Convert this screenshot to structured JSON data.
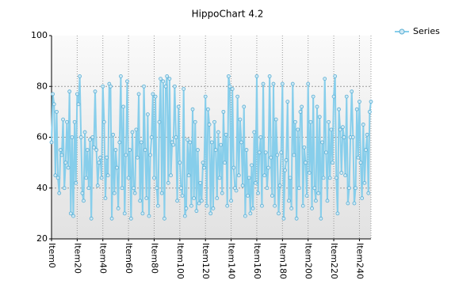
{
  "chart_data": {
    "type": "line",
    "title": "HippoChart 4.2",
    "categories": [
      "Item0",
      null,
      null,
      null,
      null,
      null,
      null,
      null,
      null,
      null,
      null,
      null,
      null,
      null,
      null,
      null,
      null,
      null,
      null,
      null,
      "Item20",
      null,
      null,
      null,
      null,
      null,
      null,
      null,
      null,
      null,
      null,
      null,
      null,
      null,
      null,
      null,
      null,
      null,
      null,
      null,
      "Item40",
      null,
      null,
      null,
      null,
      null,
      null,
      null,
      null,
      null,
      null,
      null,
      null,
      null,
      null,
      null,
      null,
      null,
      null,
      null,
      "Item60",
      null,
      null,
      null,
      null,
      null,
      null,
      null,
      null,
      null,
      null,
      null,
      null,
      null,
      null,
      null,
      null,
      null,
      null,
      null,
      "Item80",
      null,
      null,
      null,
      null,
      null,
      null,
      null,
      null,
      null,
      null,
      null,
      null,
      null,
      null,
      null,
      null,
      null,
      null,
      null,
      "Item100",
      null,
      null,
      null,
      null,
      null,
      null,
      null,
      null,
      null,
      null,
      null,
      null,
      null,
      null,
      null,
      null,
      null,
      null,
      null,
      "Item120",
      null,
      null,
      null,
      null,
      null,
      null,
      null,
      null,
      null,
      null,
      null,
      null,
      null,
      null,
      null,
      null,
      null,
      null,
      null,
      "Item140",
      null,
      null,
      null,
      null,
      null,
      null,
      null,
      null,
      null,
      null,
      null,
      null,
      null,
      null,
      null,
      null,
      null,
      null,
      null,
      "Item160",
      null,
      null,
      null,
      null,
      null,
      null,
      null,
      null,
      null,
      null,
      null,
      null,
      null,
      null,
      null,
      null,
      null,
      null,
      null,
      "Item180",
      null,
      null,
      null,
      null,
      null,
      null,
      null,
      null,
      null,
      null,
      null,
      null,
      null,
      null,
      null,
      null,
      null,
      null,
      null,
      "Item200",
      null,
      null,
      null,
      null,
      null,
      null,
      null,
      null,
      null,
      null,
      null,
      null,
      null,
      null,
      null,
      null,
      null,
      null,
      null,
      "Item220",
      null,
      null,
      null,
      null,
      null,
      null,
      null,
      null,
      null,
      null,
      null,
      null,
      null,
      null,
      null,
      null,
      null,
      null,
      null,
      "Item240",
      null,
      null,
      null,
      null,
      null,
      null,
      null,
      null,
      null
    ],
    "series": [
      {
        "name": "Series",
        "color": "#87ceeb",
        "values": [
          58,
          77,
          73,
          45,
          70,
          44,
          38,
          55,
          53,
          67,
          40,
          50,
          66,
          48,
          78,
          30,
          60,
          29,
          66,
          42,
          77,
          73,
          84,
          60,
          38,
          35,
          62,
          44,
          55,
          40,
          59,
          28,
          60,
          56,
          78,
          55,
          41,
          50,
          52,
          44,
          80,
          66,
          36,
          52,
          45,
          81,
          80,
          28,
          61,
          38,
          55,
          48,
          32,
          58,
          84,
          40,
          72,
          30,
          53,
          82,
          44,
          55,
          28,
          62,
          40,
          38,
          63,
          52,
          77,
          35,
          58,
          30,
          80,
          55,
          36,
          69,
          29,
          53,
          60,
          77,
          44,
          76,
          40,
          33,
          66,
          83,
          38,
          82,
          28,
          80,
          84,
          42,
          83,
          45,
          58,
          57,
          80,
          60,
          35,
          72,
          50,
          40,
          37,
          79,
          29,
          32,
          59,
          45,
          58,
          33,
          71,
          36,
          66,
          31,
          55,
          34,
          42,
          35,
          50,
          48,
          76,
          33,
          71,
          65,
          30,
          58,
          32,
          66,
          55,
          36,
          62,
          44,
          57,
          38,
          70,
          50,
          61,
          33,
          84,
          80,
          35,
          79,
          48,
          40,
          39,
          76,
          45,
          67,
          58,
          41,
          72,
          29,
          55,
          37,
          44,
          30,
          49,
          32,
          62,
          42,
          84,
          38,
          54,
          60,
          33,
          81,
          45,
          54,
          40,
          48,
          84,
          52,
          37,
          81,
          33,
          67,
          53,
          30,
          41,
          54,
          81,
          28,
          47,
          51,
          74,
          35,
          44,
          32,
          81,
          53,
          66,
          28,
          63,
          40,
          70,
          72,
          33,
          56,
          50,
          37,
          81,
          46,
          66,
          32,
          76,
          40,
          35,
          72,
          38,
          68,
          28,
          58,
          44,
          83,
          54,
          35,
          66,
          44,
          63,
          50,
          76,
          84,
          44,
          30,
          71,
          63,
          46,
          64,
          60,
          45,
          76,
          34,
          40,
          60,
          78,
          60,
          34,
          40,
          71,
          52,
          74,
          50,
          36,
          65,
          42,
          55,
          61,
          38,
          70,
          74
        ]
      }
    ],
    "ylim": [
      20,
      100
    ],
    "yticks": [
      20,
      40,
      60,
      80,
      100
    ],
    "grid": true,
    "legend": "top-right"
  }
}
